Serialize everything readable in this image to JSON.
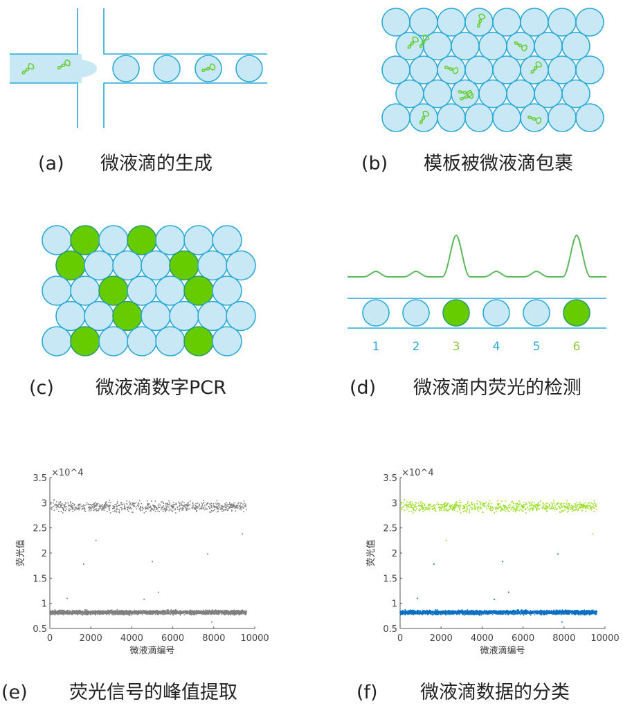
{
  "colors": {
    "channel": "#29a9d6",
    "droplet_fill": "#c9e8f6",
    "positive": "#66cc00",
    "dna": "#66cc33",
    "scatter_gray": "#7f7f7f",
    "scatter_green": "#99dd22",
    "scatter_blue": "#0a6fc2"
  },
  "panels": {
    "a": {
      "tag": "(a)",
      "caption": "微液滴的生成"
    },
    "b": {
      "tag": "(b)",
      "caption": "模板被微液滴包裹"
    },
    "c": {
      "tag": "(c)",
      "caption": "微液滴数字PCR"
    },
    "d": {
      "tag": "(d)",
      "caption": "微液滴内荧光的检测",
      "droplet_labels": [
        "1",
        "2",
        "3",
        "4",
        "5",
        "6"
      ],
      "positive_droplets": [
        3,
        6
      ]
    },
    "e": {
      "tag": "(e)",
      "caption": "荧光信号的峰值提取"
    },
    "f": {
      "tag": "(f)",
      "caption": "微液滴数据的分类"
    }
  },
  "chart_data": [
    {
      "type": "scatter",
      "panel": "e",
      "xlabel": "微液滴编号",
      "ylabel": "荧光值",
      "y_multiplier": "×10^4",
      "xlim": [
        0,
        10000
      ],
      "ylim": [
        0.5,
        3.5
      ],
      "xticks": [
        "0",
        "2000",
        "4000",
        "6000",
        "8000",
        "10000"
      ],
      "yticks": [
        "0.5",
        "1",
        "1.5",
        "2",
        "2.5",
        "3",
        "3.5"
      ],
      "clusters": [
        {
          "x_range": [
            0,
            9600
          ],
          "y_center": 2.92,
          "y_spread": 0.15,
          "count": 700
        },
        {
          "x_range": [
            0,
            9600
          ],
          "y_center": 0.82,
          "y_spread": 0.06,
          "count": 2500
        }
      ],
      "outliers": [
        [
          2250,
          2.25
        ],
        [
          1650,
          1.78
        ],
        [
          5000,
          1.83
        ],
        [
          7700,
          1.98
        ],
        [
          9400,
          2.38
        ],
        [
          5300,
          1.22
        ],
        [
          7900,
          0.63
        ],
        [
          850,
          1.1
        ],
        [
          4600,
          1.08
        ]
      ],
      "series_colors": [
        "#7f7f7f",
        "#7f7f7f"
      ]
    },
    {
      "type": "scatter",
      "panel": "f",
      "xlabel": "微液滴编号",
      "ylabel": "荧光值",
      "y_multiplier": "×10^4",
      "xlim": [
        0,
        10000
      ],
      "ylim": [
        0.5,
        3.5
      ],
      "xticks": [
        "0",
        "2000",
        "4000",
        "6000",
        "8000",
        "10000"
      ],
      "yticks": [
        "0.5",
        "1",
        "1.5",
        "2",
        "2.5",
        "3",
        "3.5"
      ],
      "clusters": [
        {
          "x_range": [
            0,
            9600
          ],
          "y_center": 2.92,
          "y_spread": 0.15,
          "count": 700
        },
        {
          "x_range": [
            0,
            9600
          ],
          "y_center": 0.82,
          "y_spread": 0.06,
          "count": 2500
        }
      ],
      "outliers": [
        [
          2250,
          2.25
        ],
        [
          1650,
          1.78
        ],
        [
          5000,
          1.83
        ],
        [
          7700,
          1.98
        ],
        [
          9400,
          2.38
        ],
        [
          5300,
          1.22
        ],
        [
          7900,
          0.63
        ],
        [
          850,
          1.1
        ],
        [
          4600,
          1.08
        ]
      ],
      "series_colors": [
        "#99dd22",
        "#0a6fc2"
      ]
    }
  ]
}
